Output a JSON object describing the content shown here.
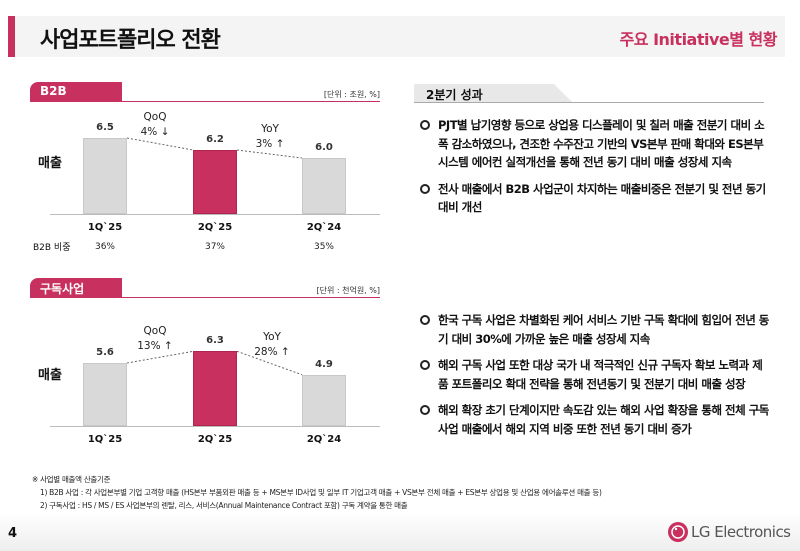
{
  "header": {
    "title": "사업포트폴리오 전환",
    "subtitle": "주요 Initiative별 현황"
  },
  "colors": {
    "accent": "#c8305f",
    "bar_gray": "#d9d9d9"
  },
  "chart_data": [
    {
      "type": "bar",
      "section": "B2B",
      "unit": "[단위 : 조원, %]",
      "ylabel": "매출",
      "categories": [
        "1Q`25",
        "2Q`25",
        "2Q`24"
      ],
      "values": [
        6.5,
        6.2,
        6.0
      ],
      "value_labels": [
        "6.5",
        "6.2",
        "6.0"
      ],
      "highlight": "2Q`25",
      "trend_line": "dashed",
      "annotations": [
        {
          "label": "QoQ",
          "value": "4% ↓"
        },
        {
          "label": "YoY",
          "value": "3% ↑"
        }
      ],
      "share_row": {
        "label": "B2B 비중",
        "values": [
          "36%",
          "37%",
          "35%"
        ]
      }
    },
    {
      "type": "bar",
      "section": "구독사업",
      "unit": "[단위 : 천억원, %]",
      "ylabel": "매출",
      "categories": [
        "1Q`25",
        "2Q`25",
        "2Q`24"
      ],
      "values": [
        5.6,
        6.3,
        4.9
      ],
      "value_labels": [
        "5.6",
        "6.3",
        "4.9"
      ],
      "highlight": "2Q`25",
      "trend_line": "dashed",
      "annotations": [
        {
          "label": "QoQ",
          "value": "13% ↑"
        },
        {
          "label": "YoY",
          "value": "28% ↑"
        }
      ]
    }
  ],
  "right": {
    "tab": "2분기 성과",
    "b2b_bullets": [
      "PJT별 납기영향 등으로 상업용 디스플레이 및 칠러 매출 전분기 대비 소폭 감소하였으나, 견조한 수주잔고 기반의 VS본부 판매 확대와 ES본부 시스템 에어컨 실적개선을 통해 전년 동기 대비 매출 성장세 지속",
      "전사 매출에서 B2B 사업군이 차지하는 매출비중은 전분기 및 전년 동기 대비 개선"
    ],
    "sub_bullets": [
      "한국 구독 사업은 차별화된 케어 서비스 기반 구독 확대에 힘입어 전년 동기 대비 30%에 가까운 높은 매출 성장세 지속",
      "해외 구독 사업 또한 대상 국가 내 적극적인 신규 구독자 확보 노력과 제품 포트폴리오 확대 전략을 통해 전년동기 및 전분기 대비 매출 성장",
      "해외 확장 초기 단계이지만 속도감 있는 해외 사업 확장을 통해 전체 구독사업 매출에서 해외 지역 비중 또한 전년 동기 대비 증가"
    ]
  },
  "footnotes": [
    "※ 사업별 매출액 산출기준",
    "1) B2B 사업 : 각 사업본부별 기업 고객향 매출 (HS본부 부품외판 매출 등 + MS본부 ID사업 및 일부 IT 기업고객 매출 + VS본부 전체 매출 + ES본부 상업용 및 산업용 에어솔루션 매출 등)",
    "2) 구독사업 : HS / MS / ES 사업본부의 렌탈, 리스, 서비스(Annual Maintenance Contract 포함) 구독 계약을 통한 매출"
  ],
  "footer": {
    "page": "4",
    "logo": "LG Electronics"
  }
}
